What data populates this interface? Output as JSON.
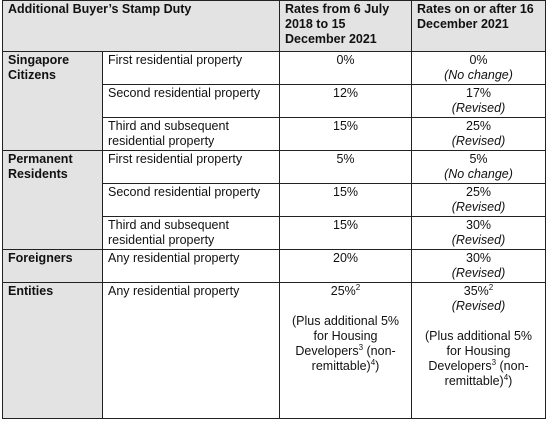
{
  "table": {
    "headers": {
      "title": "Additional Buyer’s Stamp Duty",
      "col_old": "Rates from 6 July 2018 to 15 December 2021",
      "col_new": "Rates on or after 16 December 2021"
    },
    "groups": {
      "sc": {
        "label": "Singapore Citizens",
        "rows": [
          {
            "property": "First residential property",
            "old": "0%",
            "new": "0%",
            "note": "(No change)"
          },
          {
            "property": "Second residential property",
            "old": "12%",
            "new": "17%",
            "note": "(Revised)"
          },
          {
            "property": "Third and subsequent residential property",
            "old": "15%",
            "new": "25%",
            "note": "(Revised)"
          }
        ]
      },
      "pr": {
        "label": "Permanent Residents",
        "rows": [
          {
            "property": "First residential property",
            "old": "5%",
            "new": "5%",
            "note": "(No change)"
          },
          {
            "property": "Second residential property",
            "old": "15%",
            "new": "25%",
            "note": "(Revised)"
          },
          {
            "property": "Third and subsequent residential property",
            "old": "15%",
            "new": "30%",
            "note": "(Revised)"
          }
        ]
      },
      "fo": {
        "label": "Foreigners",
        "rows": [
          {
            "property": "Any residential property",
            "old": "20%",
            "new": "30%",
            "note": "(Revised)"
          }
        ]
      },
      "en": {
        "label": "Entities",
        "property": "Any residential property",
        "old_rate": "25%",
        "old_rate_sup": "2",
        "old_extra_a": "(Plus additional 5% for Housing Developers",
        "old_extra_sup1": "3",
        "old_extra_b": " (non-remittable)",
        "old_extra_sup2": "4",
        "old_extra_c": ")",
        "new_rate": "35%",
        "new_rate_sup": "2",
        "new_note": "(Revised)",
        "new_extra_a": "(Plus additional 5% for Housing Developers",
        "new_extra_sup1": "3",
        "new_extra_b": " (non-remittable)",
        "new_extra_sup2": "4",
        "new_extra_c": ")"
      }
    }
  }
}
